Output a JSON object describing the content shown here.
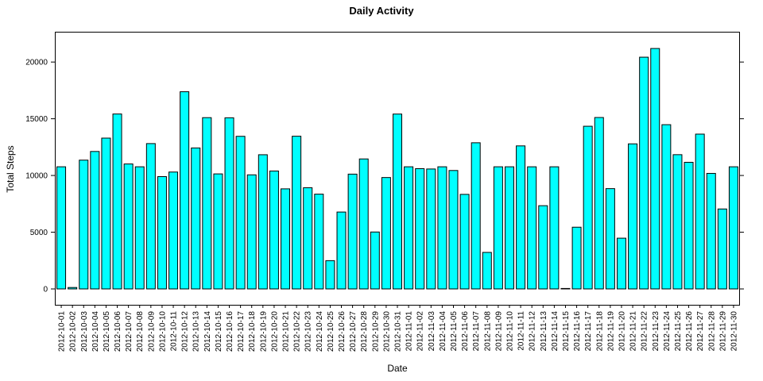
{
  "chart_data": {
    "type": "bar",
    "title": "Daily Activity",
    "xlabel": "Date",
    "ylabel": "Total Steps",
    "ylim": [
      -1400,
      22600
    ],
    "yticks": [
      0,
      5000,
      10000,
      15000,
      20000
    ],
    "bar_color": "#00ffff",
    "grid": false,
    "categories": [
      "2012-10-01",
      "2012-10-02",
      "2012-10-03",
      "2012-10-04",
      "2012-10-05",
      "2012-10-06",
      "2012-10-07",
      "2012-10-08",
      "2012-10-09",
      "2012-10-10",
      "2012-10-11",
      "2012-10-12",
      "2012-10-13",
      "2012-10-14",
      "2012-10-15",
      "2012-10-16",
      "2012-10-17",
      "2012-10-18",
      "2012-10-19",
      "2012-10-20",
      "2012-10-21",
      "2012-10-22",
      "2012-10-23",
      "2012-10-24",
      "2012-10-25",
      "2012-10-26",
      "2012-10-27",
      "2012-10-28",
      "2012-10-29",
      "2012-10-30",
      "2012-10-31",
      "2012-11-01",
      "2012-11-02",
      "2012-11-03",
      "2012-11-04",
      "2012-11-05",
      "2012-11-06",
      "2012-11-07",
      "2012-11-08",
      "2012-11-09",
      "2012-11-10",
      "2012-11-11",
      "2012-11-12",
      "2012-11-13",
      "2012-11-14",
      "2012-11-15",
      "2012-11-16",
      "2012-11-17",
      "2012-11-18",
      "2012-11-19",
      "2012-11-20",
      "2012-11-21",
      "2012-11-22",
      "2012-11-23",
      "2012-11-24",
      "2012-11-25",
      "2012-11-26",
      "2012-11-27",
      "2012-11-28",
      "2012-11-29",
      "2012-11-30"
    ],
    "values": [
      10766,
      126,
      11352,
      12116,
      13294,
      15420,
      11015,
      10766,
      12811,
      9900,
      10304,
      17382,
      12426,
      15098,
      10139,
      15084,
      13452,
      10056,
      11829,
      10395,
      8821,
      13460,
      8918,
      8355,
      2492,
      6778,
      10119,
      11458,
      5018,
      9819,
      15414,
      10766,
      10600,
      10571,
      10766,
      10439,
      8334,
      12883,
      3219,
      10766,
      10766,
      12608,
      10765,
      7336,
      10766,
      41,
      5441,
      14339,
      15110,
      8841,
      4472,
      12787,
      20427,
      21194,
      14478,
      11834,
      11162,
      13646,
      10183,
      7047,
      10766
    ]
  }
}
